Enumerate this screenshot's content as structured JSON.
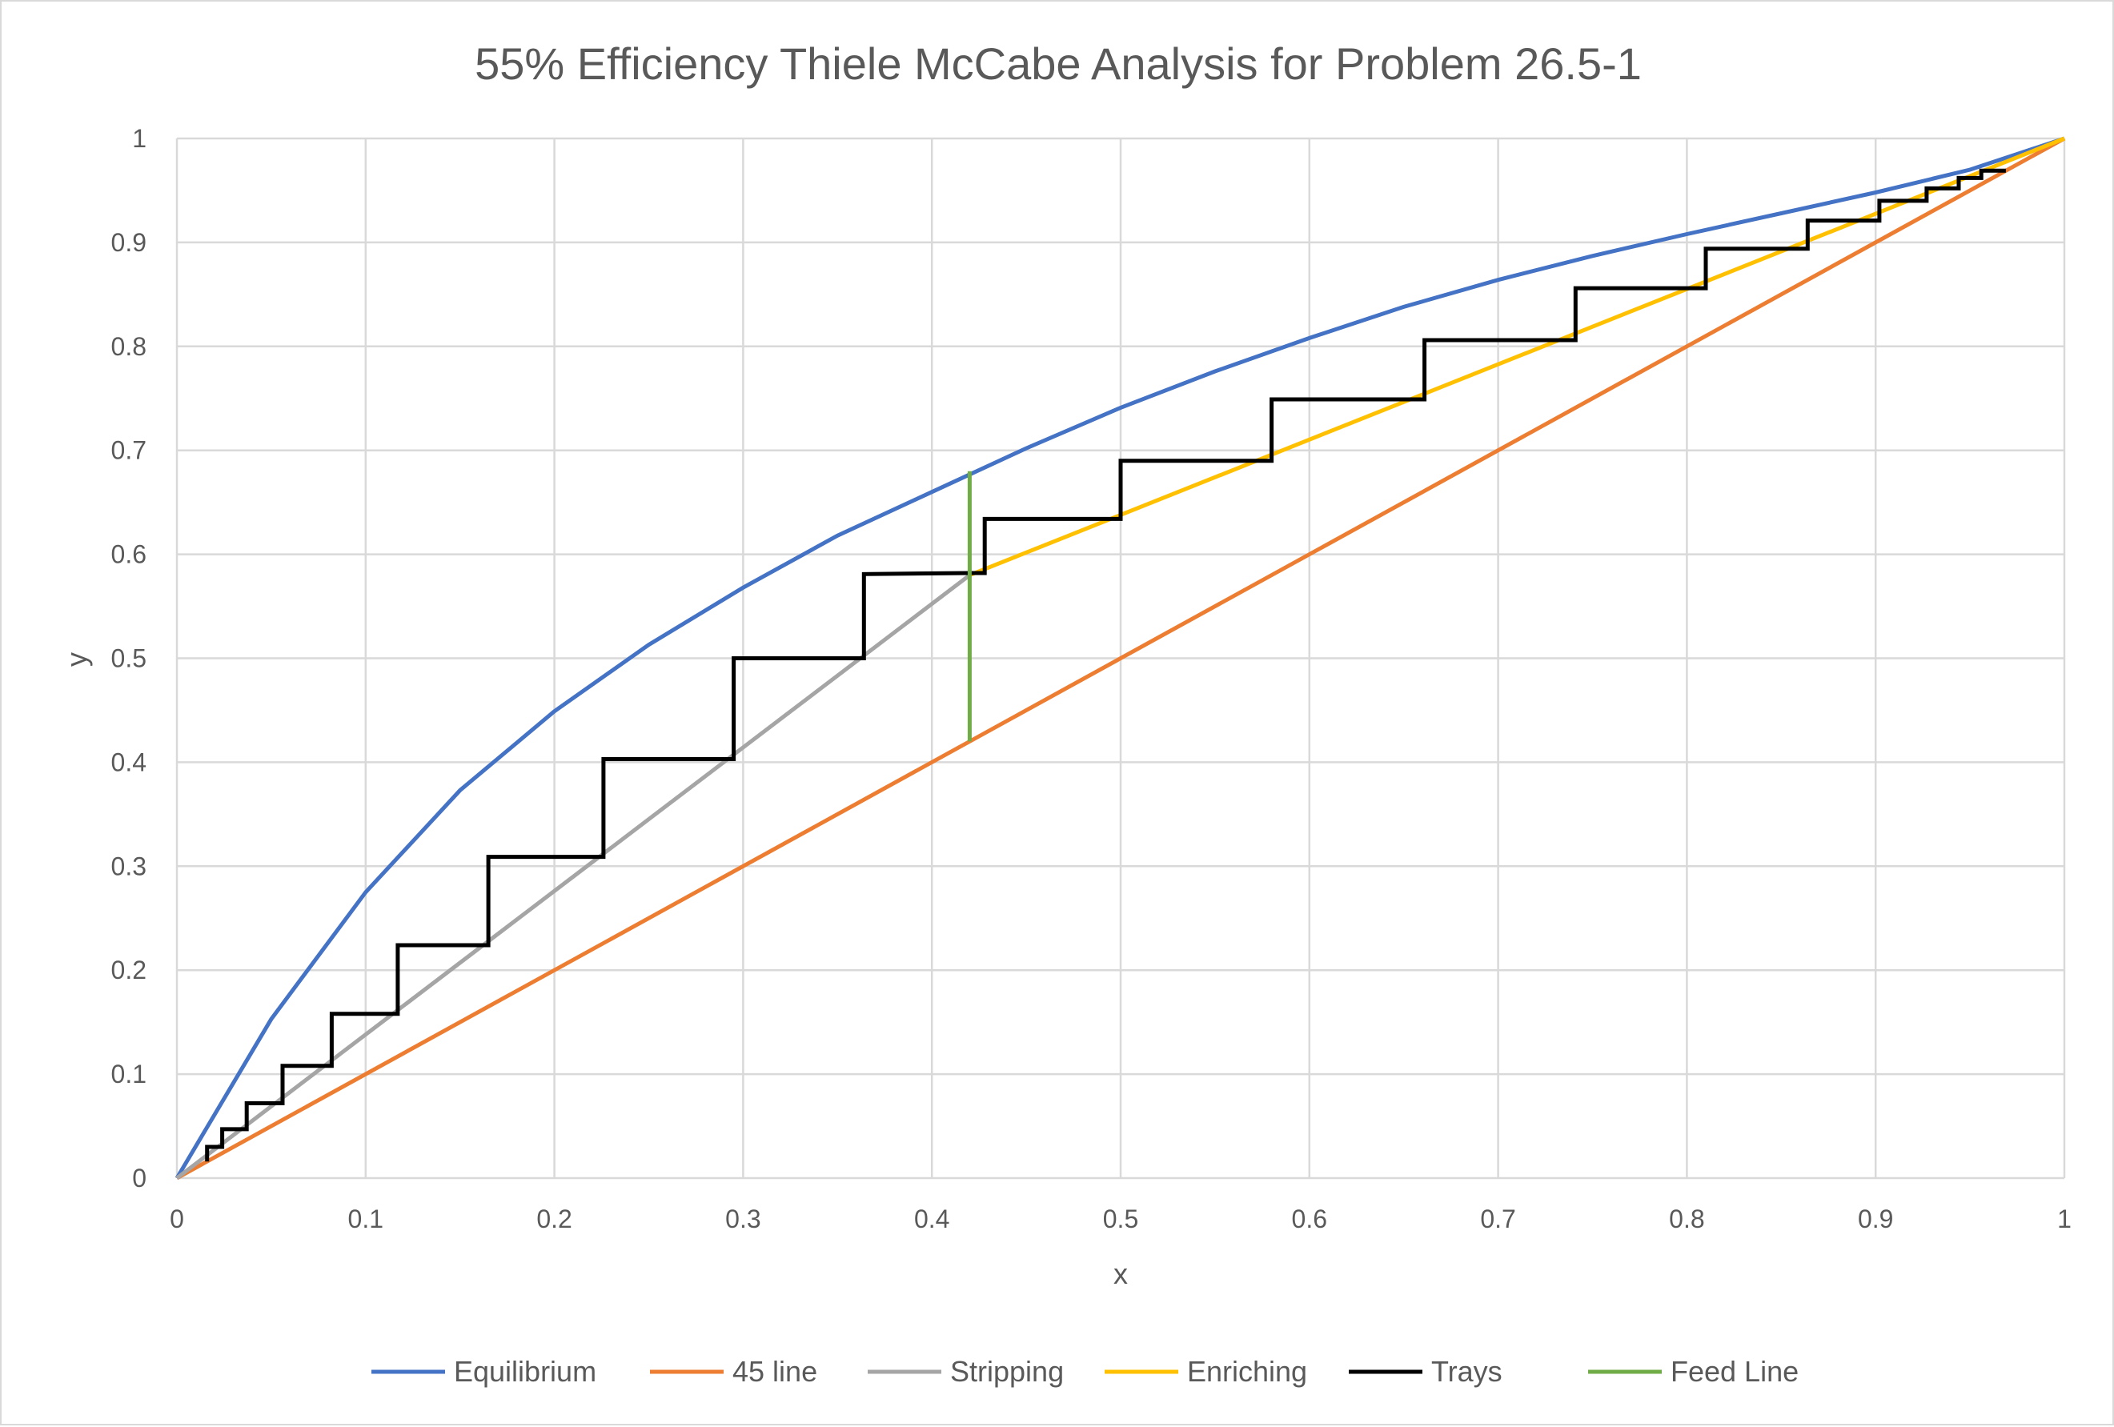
{
  "chart_data": {
    "type": "line",
    "title": "55% Efficiency Thiele McCabe Analysis for Problem 26.5-1",
    "xlabel": "x",
    "ylabel": "y",
    "xlim": [
      0,
      1
    ],
    "ylim": [
      0,
      1
    ],
    "xticks": [
      "0",
      "0.1",
      "0.2",
      "0.3",
      "0.4",
      "0.5",
      "0.6",
      "0.7",
      "0.8",
      "0.9",
      "1"
    ],
    "yticks": [
      "0",
      "0.1",
      "0.2",
      "0.3",
      "0.4",
      "0.5",
      "0.6",
      "0.7",
      "0.8",
      "0.9",
      "1"
    ],
    "grid": true,
    "legend_position": "bottom",
    "series": [
      {
        "name": "Equilibrium",
        "color": "#4472C4",
        "x": [
          0,
          0.05,
          0.1,
          0.15,
          0.2,
          0.25,
          0.3,
          0.35,
          0.4,
          0.45,
          0.5,
          0.55,
          0.6,
          0.65,
          0.7,
          0.75,
          0.8,
          0.85,
          0.9,
          0.95,
          1
        ],
        "y": [
          0,
          0.153,
          0.275,
          0.373,
          0.449,
          0.513,
          0.568,
          0.618,
          0.66,
          0.702,
          0.741,
          0.776,
          0.808,
          0.838,
          0.864,
          0.887,
          0.908,
          0.928,
          0.948,
          0.97,
          1
        ]
      },
      {
        "name": "45 line",
        "color": "#ED7D31",
        "x": [
          0,
          1
        ],
        "y": [
          0,
          1
        ]
      },
      {
        "name": "Stripping",
        "color": "#A5A5A5",
        "x": [
          0,
          0.42
        ],
        "y": [
          0,
          0.58
        ]
      },
      {
        "name": "Enriching",
        "color": "#FFC000",
        "x": [
          0.42,
          1
        ],
        "y": [
          0.58,
          1
        ]
      },
      {
        "name": "Trays",
        "color": "#000000",
        "x": [
          0.016,
          0.016,
          0.024,
          0.024,
          0.037,
          0.037,
          0.056,
          0.056,
          0.082,
          0.082,
          0.117,
          0.117,
          0.165,
          0.165,
          0.226,
          0.226,
          0.295,
          0.295,
          0.364,
          0.364,
          0.42,
          0.428,
          0.428,
          0.5,
          0.5,
          0.58,
          0.58,
          0.661,
          0.661,
          0.741,
          0.741,
          0.81,
          0.81,
          0.864,
          0.864,
          0.902,
          0.902,
          0.927,
          0.927,
          0.944,
          0.944,
          0.956,
          0.956,
          0.969
        ],
        "y": [
          0.016,
          0.03,
          0.03,
          0.047,
          0.047,
          0.072,
          0.072,
          0.108,
          0.108,
          0.158,
          0.158,
          0.224,
          0.224,
          0.309,
          0.309,
          0.403,
          0.403,
          0.5,
          0.5,
          0.581,
          0.582,
          0.582,
          0.634,
          0.634,
          0.69,
          0.69,
          0.749,
          0.749,
          0.806,
          0.806,
          0.856,
          0.856,
          0.894,
          0.894,
          0.921,
          0.921,
          0.94,
          0.94,
          0.952,
          0.952,
          0.962,
          0.962,
          0.969,
          0.969
        ]
      },
      {
        "name": "Feed Line",
        "color": "#70AD47",
        "x": [
          0.42,
          0.42
        ],
        "y": [
          0.42,
          0.68
        ]
      }
    ]
  }
}
